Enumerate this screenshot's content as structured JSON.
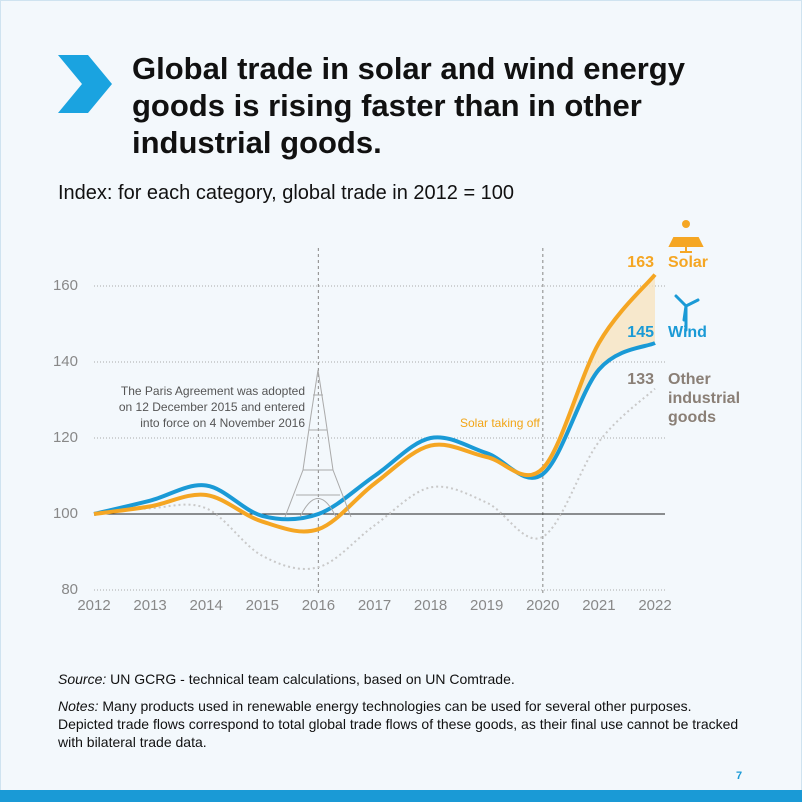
{
  "title": "Global trade in solar and wind energy goods is rising faster than in other industrial goods.",
  "source_label": "Source:",
  "source": "UN GCRG - technical team calculations, based on UN Comtrade.",
  "notes_label": "Notes:",
  "notes": "Many products used in renewable energy technologies can be used for several other purposes. Depicted trade flows correspond to total global trade flows of these goods, as their final use cannot be tracked with bilateral trade data.",
  "page_number": "7",
  "chart_data": {
    "type": "line",
    "subtitle": "Index: for each category, global trade in 2012 = 100",
    "x": [
      2012,
      2013,
      2014,
      2015,
      2016,
      2017,
      2018,
      2019,
      2020,
      2021,
      2022
    ],
    "series": [
      {
        "name": "Solar",
        "color": "#f5a623",
        "values": [
          100,
          102,
          105,
          98,
          96,
          108,
          118,
          115,
          112,
          145,
          163
        ]
      },
      {
        "name": "Wind",
        "color": "#1a9ad6",
        "values": [
          100,
          103.5,
          107.5,
          99.5,
          100,
          110,
          120,
          116,
          110.5,
          138,
          145
        ]
      },
      {
        "name": "Other industrial goods",
        "color": "#c9c9c9",
        "label_color": "#8a7f76",
        "dashed": true,
        "values": [
          100,
          101.5,
          101.5,
          89,
          86,
          97,
          107,
          103,
          94,
          119,
          133
        ]
      }
    ],
    "xlim": [
      2012,
      2022
    ],
    "xticks": [
      2012,
      2013,
      2014,
      2015,
      2016,
      2017,
      2018,
      2019,
      2020,
      2021,
      2022
    ],
    "ylim": [
      80,
      170
    ],
    "yticks": [
      80,
      100,
      120,
      140,
      160
    ],
    "grid": true,
    "baseline": 100,
    "vlines": [
      2016,
      2020
    ],
    "annotations": [
      "The Paris Agreement was adopted on 12 December 2015 and entered into force on 4 November 2016",
      "Solar taking off"
    ]
  }
}
